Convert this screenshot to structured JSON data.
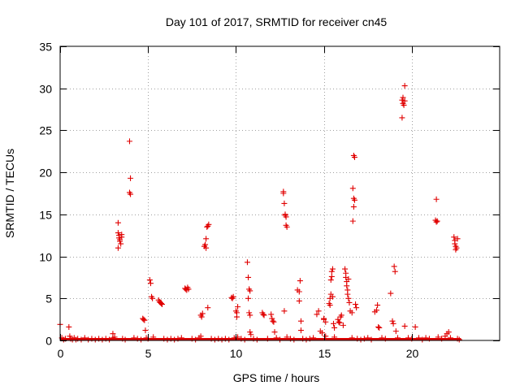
{
  "chart_data": {
    "type": "scatter",
    "title": "Day 101 of 2017, SRMTID for receiver cn45",
    "xlabel": "GPS time / hours",
    "ylabel": "SRMTID / TECUs",
    "xlim": [
      0,
      25
    ],
    "ylim": [
      0,
      35
    ],
    "xticks": [
      0,
      5,
      10,
      15,
      20
    ],
    "yticks": [
      0,
      5,
      10,
      15,
      20,
      25,
      30,
      35
    ],
    "grid": true,
    "marker": "+",
    "series": [
      {
        "name": "SRMTID",
        "color": "#e00000",
        "points": [
          [
            0.0,
            1.9
          ],
          [
            0.1,
            0.3
          ],
          [
            0.2,
            0.1
          ],
          [
            0.3,
            0.2
          ],
          [
            0.5,
            1.6
          ],
          [
            0.55,
            0.5
          ],
          [
            0.6,
            0.2
          ],
          [
            0.7,
            0.1
          ],
          [
            0.8,
            0.3
          ],
          [
            0.9,
            0.1
          ],
          [
            1.0,
            0.2
          ],
          [
            1.2,
            0.1
          ],
          [
            1.4,
            0.3
          ],
          [
            1.6,
            0.1
          ],
          [
            1.8,
            0.2
          ],
          [
            2.0,
            0.1
          ],
          [
            2.2,
            0.2
          ],
          [
            2.4,
            0.1
          ],
          [
            2.6,
            0.2
          ],
          [
            2.8,
            0.1
          ],
          [
            3.0,
            0.3
          ],
          [
            3.0,
            0.8
          ],
          [
            3.1,
            0.4
          ],
          [
            3.3,
            14.0
          ],
          [
            3.3,
            12.8
          ],
          [
            3.35,
            12.5
          ],
          [
            3.35,
            12.2
          ],
          [
            3.4,
            12.0
          ],
          [
            3.4,
            11.8
          ],
          [
            3.45,
            11.5
          ],
          [
            3.3,
            11.0
          ],
          [
            3.5,
            12.6
          ],
          [
            3.5,
            12.3
          ],
          [
            3.55,
            0.2
          ],
          [
            3.7,
            0.1
          ],
          [
            3.95,
            23.7
          ],
          [
            3.95,
            17.6
          ],
          [
            4.0,
            17.4
          ],
          [
            4.0,
            19.3
          ],
          [
            4.2,
            0.3
          ],
          [
            4.4,
            0.2
          ],
          [
            4.6,
            0.1
          ],
          [
            4.7,
            2.6
          ],
          [
            4.75,
            2.5
          ],
          [
            4.8,
            2.4
          ],
          [
            4.85,
            1.2
          ],
          [
            4.9,
            0.3
          ],
          [
            5.0,
            0.2
          ],
          [
            5.1,
            7.2
          ],
          [
            5.15,
            6.8
          ],
          [
            5.2,
            5.2
          ],
          [
            5.25,
            5.0
          ],
          [
            5.3,
            0.4
          ],
          [
            5.6,
            4.8
          ],
          [
            5.65,
            4.6
          ],
          [
            5.7,
            4.5
          ],
          [
            5.75,
            4.4
          ],
          [
            5.8,
            4.3
          ],
          [
            5.9,
            0.2
          ],
          [
            6.1,
            0.1
          ],
          [
            6.3,
            0.2
          ],
          [
            6.5,
            0.1
          ],
          [
            6.7,
            0.2
          ],
          [
            6.9,
            0.3
          ],
          [
            7.1,
            6.2
          ],
          [
            7.15,
            6.1
          ],
          [
            7.2,
            6.0
          ],
          [
            7.25,
            6.3
          ],
          [
            7.3,
            6.1
          ],
          [
            7.5,
            0.2
          ],
          [
            7.7,
            0.1
          ],
          [
            7.9,
            0.3
          ],
          [
            8.0,
            0.5
          ],
          [
            8.0,
            3.0
          ],
          [
            8.05,
            2.8
          ],
          [
            8.1,
            3.2
          ],
          [
            8.2,
            11.2
          ],
          [
            8.25,
            11.4
          ],
          [
            8.3,
            11.0
          ],
          [
            8.3,
            12.1
          ],
          [
            8.35,
            13.5
          ],
          [
            8.4,
            13.6
          ],
          [
            8.45,
            13.8
          ],
          [
            8.4,
            3.9
          ],
          [
            8.6,
            0.2
          ],
          [
            8.8,
            0.1
          ],
          [
            9.0,
            0.2
          ],
          [
            9.2,
            0.1
          ],
          [
            9.4,
            0.2
          ],
          [
            9.6,
            0.1
          ],
          [
            9.75,
            5.1
          ],
          [
            9.8,
            5.0
          ],
          [
            9.85,
            5.2
          ],
          [
            9.9,
            0.3
          ],
          [
            10.0,
            3.5
          ],
          [
            10.05,
            3.3
          ],
          [
            10.05,
            2.8
          ],
          [
            10.1,
            4.0
          ],
          [
            10.1,
            0.4
          ],
          [
            10.3,
            0.2
          ],
          [
            10.5,
            0.1
          ],
          [
            10.65,
            9.3
          ],
          [
            10.7,
            7.5
          ],
          [
            10.75,
            6.1
          ],
          [
            10.8,
            5.9
          ],
          [
            10.7,
            5.0
          ],
          [
            10.75,
            3.3
          ],
          [
            10.8,
            3.0
          ],
          [
            10.8,
            1.0
          ],
          [
            10.85,
            0.7
          ],
          [
            11.0,
            0.2
          ],
          [
            11.2,
            0.1
          ],
          [
            11.5,
            3.3
          ],
          [
            11.55,
            3.1
          ],
          [
            11.6,
            3.0
          ],
          [
            11.8,
            0.2
          ],
          [
            12.0,
            3.1
          ],
          [
            12.05,
            2.6
          ],
          [
            12.1,
            2.3
          ],
          [
            12.15,
            2.2
          ],
          [
            12.2,
            1.0
          ],
          [
            12.3,
            0.3
          ],
          [
            12.5,
            0.1
          ],
          [
            12.7,
            17.7
          ],
          [
            12.7,
            17.5
          ],
          [
            12.75,
            16.3
          ],
          [
            12.8,
            15.0
          ],
          [
            12.8,
            14.9
          ],
          [
            12.85,
            14.7
          ],
          [
            12.85,
            13.7
          ],
          [
            12.9,
            13.5
          ],
          [
            12.75,
            3.5
          ],
          [
            12.9,
            0.4
          ],
          [
            13.1,
            0.2
          ],
          [
            13.3,
            0.1
          ],
          [
            13.5,
            6.0
          ],
          [
            13.6,
            5.8
          ],
          [
            13.6,
            4.7
          ],
          [
            13.65,
            7.1
          ],
          [
            13.7,
            2.3
          ],
          [
            13.7,
            1.2
          ],
          [
            13.8,
            0.2
          ],
          [
            14.0,
            0.1
          ],
          [
            14.2,
            0.2
          ],
          [
            14.4,
            0.3
          ],
          [
            14.6,
            3.1
          ],
          [
            14.7,
            3.5
          ],
          [
            14.8,
            1.1
          ],
          [
            14.9,
            0.9
          ],
          [
            15.0,
            2.6
          ],
          [
            15.0,
            2.5
          ],
          [
            15.1,
            2.2
          ],
          [
            15.1,
            0.5
          ],
          [
            15.3,
            4.4
          ],
          [
            15.35,
            4.2
          ],
          [
            15.35,
            5.0
          ],
          [
            15.4,
            5.5
          ],
          [
            15.4,
            7.2
          ],
          [
            15.45,
            7.6
          ],
          [
            15.45,
            8.2
          ],
          [
            15.5,
            8.5
          ],
          [
            15.5,
            5.2
          ],
          [
            15.55,
            2.0
          ],
          [
            15.6,
            1.5
          ],
          [
            15.6,
            0.4
          ],
          [
            15.8,
            2.5
          ],
          [
            15.85,
            2.2
          ],
          [
            15.9,
            2.1
          ],
          [
            15.95,
            2.8
          ],
          [
            16.0,
            3.0
          ],
          [
            16.1,
            1.8
          ],
          [
            16.2,
            8.5
          ],
          [
            16.25,
            8.0
          ],
          [
            16.25,
            7.5
          ],
          [
            16.3,
            7.0
          ],
          [
            16.3,
            6.5
          ],
          [
            16.35,
            6.0
          ],
          [
            16.35,
            5.5
          ],
          [
            16.4,
            5.0
          ],
          [
            16.4,
            7.3
          ],
          [
            16.45,
            4.5
          ],
          [
            16.5,
            3.5
          ],
          [
            16.6,
            3.3
          ],
          [
            16.6,
            0.3
          ],
          [
            16.7,
            22.0
          ],
          [
            16.75,
            21.8
          ],
          [
            16.65,
            18.1
          ],
          [
            16.7,
            16.9
          ],
          [
            16.75,
            16.7
          ],
          [
            16.7,
            15.9
          ],
          [
            16.65,
            14.2
          ],
          [
            16.8,
            4.3
          ],
          [
            16.85,
            3.9
          ],
          [
            16.9,
            0.2
          ],
          [
            17.1,
            0.1
          ],
          [
            17.3,
            0.2
          ],
          [
            17.5,
            0.3
          ],
          [
            17.7,
            0.1
          ],
          [
            17.9,
            3.4
          ],
          [
            18.0,
            3.6
          ],
          [
            18.05,
            4.2
          ],
          [
            18.1,
            1.6
          ],
          [
            18.15,
            1.5
          ],
          [
            18.3,
            0.3
          ],
          [
            18.5,
            0.2
          ],
          [
            18.8,
            5.6
          ],
          [
            18.9,
            2.3
          ],
          [
            18.95,
            2.0
          ],
          [
            19.0,
            8.8
          ],
          [
            19.05,
            8.2
          ],
          [
            19.1,
            1.1
          ],
          [
            19.2,
            0.3
          ],
          [
            19.45,
            28.6
          ],
          [
            19.5,
            28.2
          ],
          [
            19.55,
            28.0
          ],
          [
            19.5,
            28.9
          ],
          [
            19.6,
            28.5
          ],
          [
            19.6,
            30.3
          ],
          [
            19.45,
            26.5
          ],
          [
            19.6,
            1.7
          ],
          [
            19.8,
            0.3
          ],
          [
            20.0,
            0.2
          ],
          [
            20.2,
            1.6
          ],
          [
            20.4,
            0.3
          ],
          [
            20.6,
            0.1
          ],
          [
            20.8,
            0.3
          ],
          [
            21.0,
            0.2
          ],
          [
            21.4,
            16.8
          ],
          [
            21.35,
            14.3
          ],
          [
            21.4,
            14.1
          ],
          [
            21.45,
            14.2
          ],
          [
            21.5,
            0.4
          ],
          [
            21.7,
            0.2
          ],
          [
            21.9,
            0.5
          ],
          [
            22.0,
            0.8
          ],
          [
            22.1,
            1.0
          ],
          [
            22.2,
            0.3
          ],
          [
            22.4,
            12.3
          ],
          [
            22.45,
            11.9
          ],
          [
            22.45,
            11.5
          ],
          [
            22.5,
            11.2
          ],
          [
            22.5,
            10.8
          ],
          [
            22.55,
            11.0
          ],
          [
            22.6,
            12.1
          ],
          [
            22.6,
            0.2
          ],
          [
            22.7,
            0.1
          ]
        ]
      }
    ]
  }
}
